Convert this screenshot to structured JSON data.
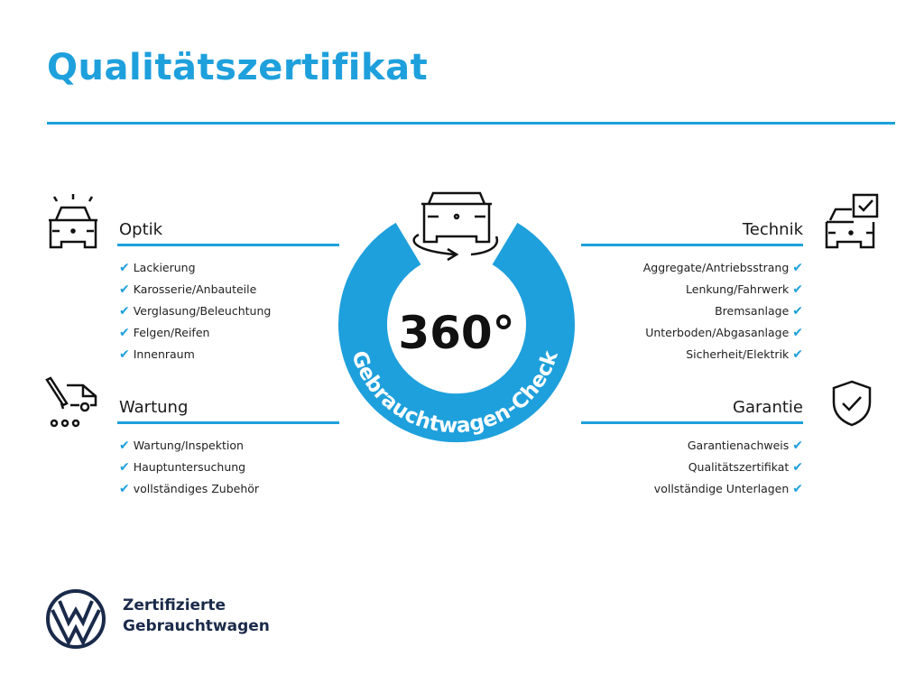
{
  "title": "Qualitätszertifikat",
  "accent": "#1ea0dc",
  "center": {
    "degrees": "360°",
    "label": "Gebrauchtwagen-Check"
  },
  "sections": {
    "optik": {
      "title": "Optik",
      "icon": "car-lights-icon",
      "items": [
        "Lackierung",
        "Karosserie/Anbauteile",
        "Verglasung/Beleuchtung",
        "Felgen/Reifen",
        "Innenraum"
      ]
    },
    "wartung": {
      "title": "Wartung",
      "icon": "service-van-tools-icon",
      "items": [
        "Wartung/Inspektion",
        "Hauptuntersuchung",
        "vollständiges Zubehör"
      ]
    },
    "technik": {
      "title": "Technik",
      "icon": "car-checklist-icon",
      "items": [
        "Aggregate/Antriebsstrang",
        "Lenkung/Fahrwerk",
        "Bremsanlage",
        "Unterboden/Abgasanlage",
        "Sicherheit/Elektrik"
      ]
    },
    "garantie": {
      "title": "Garantie",
      "icon": "shield-check-icon",
      "items": [
        "Garantienachweis",
        "Qualitätszertifikat",
        "vollständige Unterlagen"
      ]
    }
  },
  "check": "✔",
  "brand": {
    "line1": "Zertifizierte",
    "line2": "Gebrauchtwagen",
    "logo": "VW"
  }
}
